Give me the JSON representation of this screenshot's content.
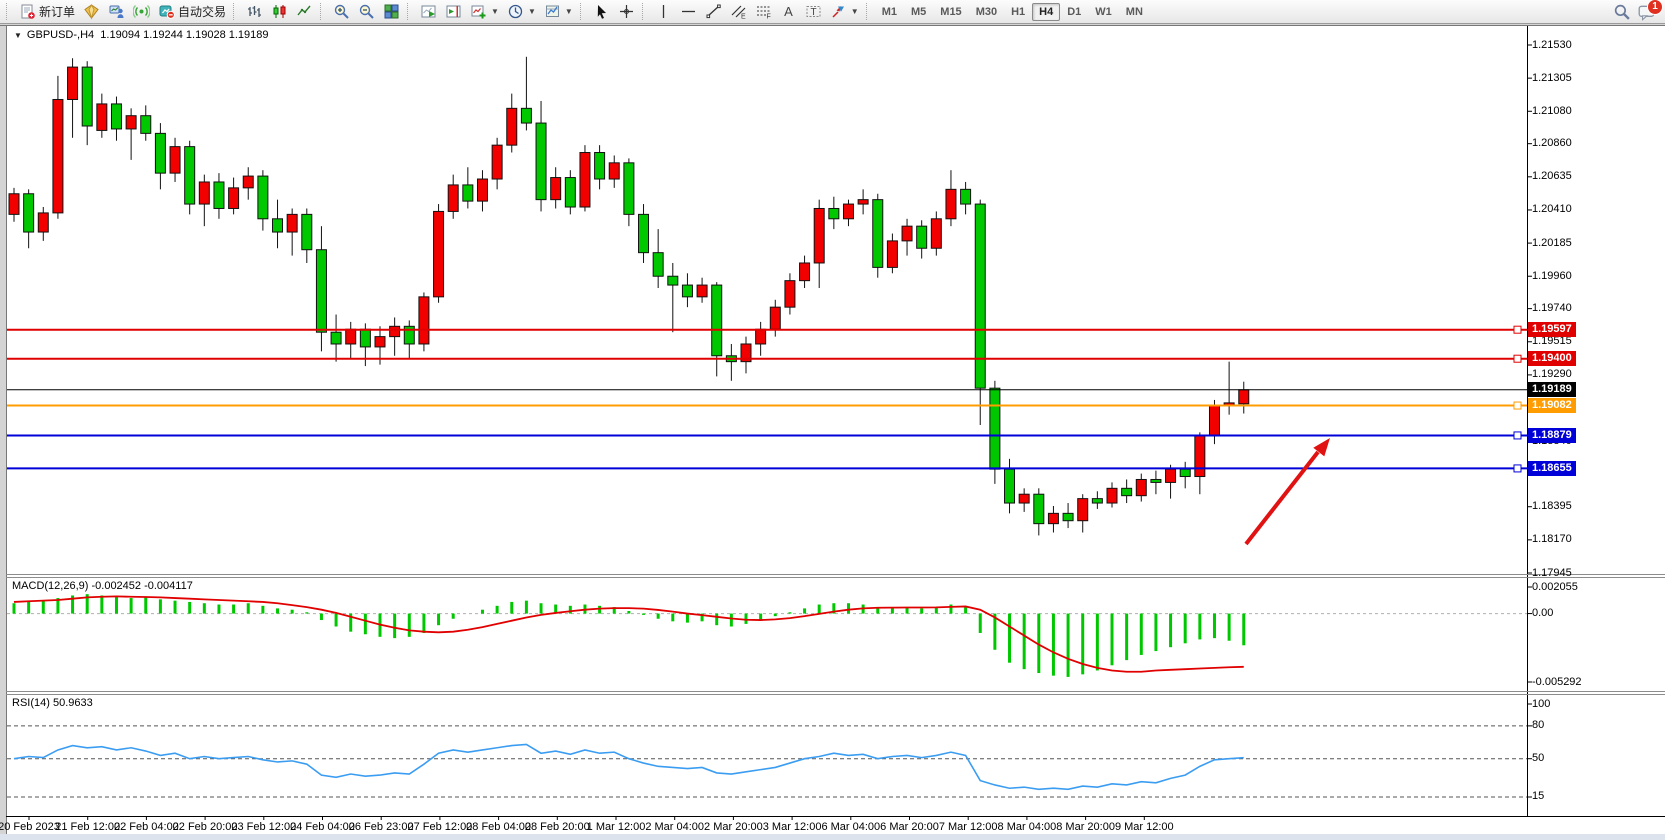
{
  "toolbar": {
    "items": [
      {
        "type": "sep"
      },
      {
        "type": "button",
        "name": "new-order-button",
        "icon": "doc-plus",
        "label": "新订单"
      },
      {
        "type": "button",
        "name": "marketwatch-button",
        "icon": "gold-gem",
        "label": ""
      },
      {
        "type": "button",
        "name": "data-window-button",
        "icon": "trader-desk",
        "label": ""
      },
      {
        "type": "button",
        "name": "signals-button",
        "icon": "signal",
        "label": ""
      },
      {
        "type": "button",
        "name": "autotrading-button",
        "icon": "autotrade",
        "label": "自动交易"
      },
      {
        "type": "sep"
      },
      {
        "type": "button",
        "name": "bar-chart-button",
        "icon": "bars-chart",
        "label": ""
      },
      {
        "type": "button",
        "name": "candlestick-chart-button",
        "icon": "candles-chart",
        "label": ""
      },
      {
        "type": "button",
        "name": "line-chart-button",
        "icon": "line-chart",
        "label": ""
      },
      {
        "type": "sep"
      },
      {
        "type": "button",
        "name": "zoom-in-button",
        "icon": "zoom-in",
        "label": ""
      },
      {
        "type": "button",
        "name": "zoom-out-button",
        "icon": "zoom-out",
        "label": ""
      },
      {
        "type": "button",
        "name": "tile-windows-button",
        "icon": "tile-windows",
        "label": ""
      },
      {
        "type": "sep"
      },
      {
        "type": "button",
        "name": "auto-scroll-button",
        "icon": "auto-scroll",
        "label": ""
      },
      {
        "type": "button",
        "name": "chart-shift-button",
        "icon": "chart-shift",
        "label": ""
      },
      {
        "type": "dropdown",
        "name": "indicators-button",
        "icon": "indicators-add",
        "label": ""
      },
      {
        "type": "dropdown",
        "name": "periods-button",
        "icon": "periods-clock",
        "label": ""
      },
      {
        "type": "dropdown",
        "name": "templates-button",
        "icon": "templates",
        "label": ""
      },
      {
        "type": "sep"
      },
      {
        "type": "button",
        "name": "cursor-button",
        "icon": "cursor",
        "label": ""
      },
      {
        "type": "button",
        "name": "crosshair-button",
        "icon": "crosshair",
        "label": ""
      },
      {
        "type": "sep"
      },
      {
        "type": "button",
        "name": "vertical-line-button",
        "icon": "vline",
        "label": ""
      },
      {
        "type": "button",
        "name": "horizontal-line-button",
        "icon": "hline",
        "label": ""
      },
      {
        "type": "button",
        "name": "trendline-button",
        "icon": "trendline",
        "label": ""
      },
      {
        "type": "button",
        "name": "channel-button",
        "icon": "channel",
        "label": ""
      },
      {
        "type": "button",
        "name": "fibonacci-button",
        "icon": "fibonacci",
        "label": ""
      },
      {
        "type": "button",
        "name": "text-button",
        "icon": "text-a",
        "label": ""
      },
      {
        "type": "button",
        "name": "text-label-button",
        "icon": "text-label",
        "label": ""
      },
      {
        "type": "dropdown",
        "name": "arrows-button",
        "icon": "shapes",
        "label": ""
      },
      {
        "type": "sep"
      }
    ],
    "timeframes": [
      "M1",
      "M5",
      "M15",
      "M30",
      "H1",
      "H4",
      "D1",
      "W1",
      "MN"
    ],
    "active_timeframe": "H4",
    "notification_count": "1"
  },
  "chart_data": {
    "type": "candlestick",
    "symbol": "GBPUSD-",
    "timeframe": "H4",
    "title_left": "GBPUSD-,H4",
    "title_ohlc": "1.19094 1.19244 1.19028 1.19189",
    "ohlc": {
      "open": "1.19094",
      "high": "1.19244",
      "low": "1.19028",
      "close": "1.19189"
    },
    "bull_color": "#f20000",
    "bear_color": "#00c800",
    "price_axis": {
      "max": 1.2153,
      "min": 1.17945,
      "ticks": [
        "1.21530",
        "1.21305",
        "1.21080",
        "1.20860",
        "1.20635",
        "1.20410",
        "1.20185",
        "1.19960",
        "1.19740",
        "1.19515",
        "1.19290",
        "1.19065",
        "1.18840",
        "1.18620",
        "1.18395",
        "1.18170",
        "1.17945"
      ]
    },
    "candles": [
      [
        1.2038,
        1.2056,
        1.2033,
        1.2052
      ],
      [
        1.2052,
        1.2055,
        1.2015,
        1.2026
      ],
      [
        1.2026,
        1.2043,
        1.202,
        1.2039
      ],
      [
        1.2039,
        1.2132,
        1.2035,
        1.2116
      ],
      [
        1.2116,
        1.2144,
        1.209,
        1.2138
      ],
      [
        1.2138,
        1.2142,
        1.2085,
        1.2098
      ],
      [
        1.2095,
        1.212,
        1.209,
        1.2113
      ],
      [
        1.2113,
        1.2118,
        1.2088,
        1.2096
      ],
      [
        1.2096,
        1.211,
        1.2075,
        1.2105
      ],
      [
        1.2105,
        1.2112,
        1.2088,
        1.2093
      ],
      [
        1.2093,
        1.21,
        1.2055,
        1.2066
      ],
      [
        1.2066,
        1.209,
        1.206,
        1.2084
      ],
      [
        1.2084,
        1.2088,
        1.2038,
        1.2045
      ],
      [
        1.2045,
        1.2065,
        1.203,
        1.206
      ],
      [
        1.206,
        1.2066,
        1.2035,
        1.2042
      ],
      [
        1.2042,
        1.2063,
        1.2038,
        1.2056
      ],
      [
        1.2056,
        1.207,
        1.2048,
        1.2064
      ],
      [
        1.2064,
        1.2068,
        1.2027,
        1.2035
      ],
      [
        1.2035,
        1.2048,
        1.2015,
        1.2026
      ],
      [
        1.2026,
        1.2042,
        1.201,
        1.2038
      ],
      [
        1.2038,
        1.2042,
        1.2005,
        1.2014
      ],
      [
        1.2014,
        1.203,
        1.1945,
        1.1958
      ],
      [
        1.1958,
        1.197,
        1.1938,
        1.195
      ],
      [
        1.195,
        1.1965,
        1.194,
        1.196
      ],
      [
        1.196,
        1.1964,
        1.1935,
        1.1948
      ],
      [
        1.1948,
        1.1962,
        1.1936,
        1.1955
      ],
      [
        1.1955,
        1.1968,
        1.1942,
        1.1962
      ],
      [
        1.1962,
        1.1966,
        1.194,
        1.195
      ],
      [
        1.195,
        1.1985,
        1.1945,
        1.1982
      ],
      [
        1.1982,
        1.2045,
        1.1978,
        1.204
      ],
      [
        1.204,
        1.2065,
        1.2035,
        1.2058
      ],
      [
        1.2058,
        1.207,
        1.2042,
        1.2047
      ],
      [
        1.2047,
        1.2068,
        1.204,
        1.2062
      ],
      [
        1.2062,
        1.209,
        1.2055,
        1.2085
      ],
      [
        1.2085,
        1.212,
        1.208,
        1.211
      ],
      [
        1.211,
        1.2145,
        1.2095,
        1.21
      ],
      [
        1.21,
        1.2115,
        1.204,
        1.2048
      ],
      [
        1.2048,
        1.207,
        1.2042,
        1.2063
      ],
      [
        1.2063,
        1.2068,
        1.2038,
        1.2043
      ],
      [
        1.2043,
        1.2085,
        1.204,
        1.208
      ],
      [
        1.208,
        1.2085,
        1.2055,
        1.2062
      ],
      [
        1.2062,
        1.2078,
        1.2056,
        1.2073
      ],
      [
        1.2073,
        1.2076,
        1.203,
        1.2038
      ],
      [
        1.2038,
        1.2045,
        1.2005,
        1.2012
      ],
      [
        1.2012,
        1.2028,
        1.1988,
        1.1996
      ],
      [
        1.1996,
        1.2005,
        1.1958,
        1.199
      ],
      [
        1.199,
        1.1998,
        1.1975,
        1.1982
      ],
      [
        1.1982,
        1.1995,
        1.1978,
        1.199
      ],
      [
        1.199,
        1.1992,
        1.1928,
        1.1942
      ],
      [
        1.1942,
        1.195,
        1.1925,
        1.1938
      ],
      [
        1.1938,
        1.1955,
        1.193,
        1.195
      ],
      [
        1.195,
        1.1965,
        1.1942,
        1.196
      ],
      [
        1.196,
        1.198,
        1.1955,
        1.1975
      ],
      [
        1.1975,
        1.1998,
        1.197,
        1.1993
      ],
      [
        1.1993,
        1.201,
        1.1988,
        1.2005
      ],
      [
        1.2005,
        1.2048,
        1.1988,
        1.2042
      ],
      [
        1.2042,
        1.205,
        1.2028,
        1.2035
      ],
      [
        1.2035,
        1.2048,
        1.203,
        1.2045
      ],
      [
        1.2045,
        1.2055,
        1.2038,
        1.2048
      ],
      [
        1.2048,
        1.2052,
        1.1995,
        1.2002
      ],
      [
        1.2002,
        1.2025,
        1.1998,
        1.202
      ],
      [
        1.202,
        1.2035,
        1.201,
        1.203
      ],
      [
        1.203,
        1.2034,
        1.2008,
        1.2015
      ],
      [
        1.2015,
        1.204,
        1.201,
        1.2035
      ],
      [
        1.2035,
        1.2068,
        1.203,
        1.2055
      ],
      [
        1.2055,
        1.206,
        1.2038,
        1.2045
      ],
      [
        1.2045,
        1.2048,
        1.1895,
        1.192
      ],
      [
        1.192,
        1.1925,
        1.1855,
        1.1865
      ],
      [
        1.1865,
        1.1872,
        1.1835,
        1.1842
      ],
      [
        1.1842,
        1.1852,
        1.1836,
        1.1848
      ],
      [
        1.1848,
        1.1852,
        1.182,
        1.1828
      ],
      [
        1.1828,
        1.184,
        1.1822,
        1.1835
      ],
      [
        1.1835,
        1.1842,
        1.1825,
        1.183
      ],
      [
        1.183,
        1.1848,
        1.1822,
        1.1845
      ],
      [
        1.1845,
        1.185,
        1.1838,
        1.1842
      ],
      [
        1.1842,
        1.1856,
        1.1839,
        1.1852
      ],
      [
        1.1852,
        1.1858,
        1.1842,
        1.1847
      ],
      [
        1.1847,
        1.1862,
        1.1843,
        1.1858
      ],
      [
        1.1858,
        1.1864,
        1.1848,
        1.1856
      ],
      [
        1.1856,
        1.1868,
        1.1845,
        1.1865
      ],
      [
        1.1865,
        1.187,
        1.1852,
        1.186
      ],
      [
        1.186,
        1.189,
        1.1848,
        1.1888
      ],
      [
        1.1888,
        1.1912,
        1.1882,
        1.1908
      ],
      [
        1.1908,
        1.1938,
        1.1902,
        1.191
      ],
      [
        1.19094,
        1.19244,
        1.19028,
        1.19189
      ]
    ],
    "hlines": [
      {
        "price": 1.19597,
        "label": "1.19597",
        "color": "#e00000",
        "width": 2
      },
      {
        "price": 1.194,
        "label": "1.19400",
        "color": "#e00000",
        "width": 2
      },
      {
        "price": 1.19082,
        "label": "1.19082",
        "color": "#ff9c00",
        "width": 2
      },
      {
        "price": 1.18879,
        "label": "1.18879",
        "color": "#0000d8",
        "width": 2
      },
      {
        "price": 1.18655,
        "label": "1.18655",
        "color": "#0000d8",
        "width": 2
      }
    ],
    "current_price": {
      "price": 1.19189,
      "label": "1.19189",
      "color": "#000000"
    },
    "arrow": {
      "color": "#e01212",
      "from": [
        1246,
        544
      ],
      "to": [
        1330,
        438
      ]
    },
    "date_labels": [
      "20 Feb 2023",
      "21 Feb 12:00",
      "22 Feb 04:00",
      "22 Feb 20:00",
      "23 Feb 12:00",
      "24 Feb 04:00",
      "26 Feb 23:00",
      "27 Feb 12:00",
      "28 Feb 04:00",
      "28 Feb 20:00",
      "1 Mar 12:00",
      "2 Mar 04:00",
      "2 Mar 20:00",
      "3 Mar 12:00",
      "6 Mar 04:00",
      "6 Mar 20:00",
      "7 Mar 12:00",
      "8 Mar 04:00",
      "8 Mar 20:00",
      "9 Mar 12:00"
    ],
    "macd": {
      "label": "MACD(12,26,9)",
      "value_main": "-0.002452",
      "value_signal": "-0.004117",
      "axis_max": 0.002055,
      "axis_min": -0.005292,
      "axis_ticks": [
        "0.002055",
        "0.00",
        "-0.005292"
      ],
      "hist_color": "#00c800",
      "signal_color": "#e00000",
      "histogram": [
        0.0008,
        0.0009,
        0.001,
        0.0012,
        0.0014,
        0.0015,
        0.0014,
        0.0013,
        0.0012,
        0.0013,
        0.0011,
        0.001,
        0.0009,
        0.0008,
        0.0007,
        0.0007,
        0.0008,
        0.0006,
        0.0004,
        0.0003,
        0.0001,
        -0.0005,
        -0.001,
        -0.0014,
        -0.0016,
        -0.0018,
        -0.0019,
        -0.0018,
        -0.0015,
        -0.0009,
        -0.0004,
        0,
        0.0003,
        0.0006,
        0.0009,
        0.001,
        0.0008,
        0.0007,
        0.0006,
        0.0007,
        0.0006,
        0.0005,
        0.0002,
        -0.0001,
        -0.0004,
        -0.0006,
        -0.0007,
        -0.0006,
        -0.0009,
        -0.001,
        -0.0008,
        -0.0005,
        -0.0002,
        0.0001,
        0.0004,
        0.0007,
        0.0008,
        0.0008,
        0.0007,
        0.0005,
        0.0004,
        0.0005,
        0.0004,
        0.0005,
        0.0007,
        0.0005,
        -0.0015,
        -0.0028,
        -0.0038,
        -0.0043,
        -0.0046,
        -0.0048,
        -0.0049,
        -0.0047,
        -0.0044,
        -0.004,
        -0.0036,
        -0.0032,
        -0.0029,
        -0.0026,
        -0.0023,
        -0.002,
        -0.0019,
        -0.0021,
        -0.002452
      ],
      "signal": [
        0.0009,
        0.00095,
        0.001,
        0.00105,
        0.00115,
        0.00125,
        0.0013,
        0.00133,
        0.0013,
        0.00128,
        0.00125,
        0.0012,
        0.00115,
        0.0011,
        0.00105,
        0.001,
        0.00095,
        0.0009,
        0.0008,
        0.00065,
        0.0005,
        0.0003,
        5e-05,
        -0.00025,
        -0.00055,
        -0.00085,
        -0.0011,
        -0.0013,
        -0.0014,
        -0.00145,
        -0.0014,
        -0.00125,
        -0.00105,
        -0.0008,
        -0.00055,
        -0.0003,
        -0.0001,
        5e-05,
        0.00018,
        0.0003,
        0.00038,
        0.00042,
        0.00042,
        0.00038,
        0.00028,
        0.00015,
        0,
        -0.00012,
        -0.00025,
        -0.00038,
        -0.00048,
        -0.0005,
        -0.00045,
        -0.00035,
        -0.0002,
        -2e-05,
        0.00015,
        0.0003,
        0.0004,
        0.00045,
        0.00046,
        0.00047,
        0.00047,
        0.00048,
        0.00052,
        0.00055,
        0.0003,
        -0.0003,
        -0.001,
        -0.0017,
        -0.0024,
        -0.003,
        -0.0035,
        -0.0039,
        -0.0042,
        -0.0044,
        -0.0045,
        -0.0045,
        -0.0044,
        -0.00435,
        -0.0043,
        -0.00425,
        -0.0042,
        -0.00415,
        -0.004117
      ]
    },
    "rsi": {
      "label": "RSI(14)",
      "value": "50.9633",
      "color": "#3b9df2",
      "axis_ticks": [
        100,
        80,
        50,
        15
      ],
      "levels": [
        80,
        50,
        15
      ],
      "line": [
        50,
        52,
        51,
        58,
        62,
        60,
        61,
        58,
        60,
        57,
        53,
        55,
        50,
        52,
        50,
        51,
        52,
        49,
        47,
        48,
        45,
        35,
        33,
        36,
        34,
        35,
        37,
        36,
        45,
        55,
        58,
        56,
        58,
        60,
        62,
        63,
        55,
        57,
        54,
        58,
        55,
        56,
        50,
        46,
        43,
        42,
        41,
        42,
        37,
        36,
        38,
        40,
        42,
        46,
        50,
        52,
        55,
        53,
        54,
        50,
        52,
        53,
        51,
        53,
        56,
        53,
        30,
        26,
        23,
        24,
        22,
        23,
        22,
        25,
        24,
        27,
        26,
        29,
        28,
        32,
        35,
        43,
        49,
        50,
        50.96
      ]
    }
  }
}
